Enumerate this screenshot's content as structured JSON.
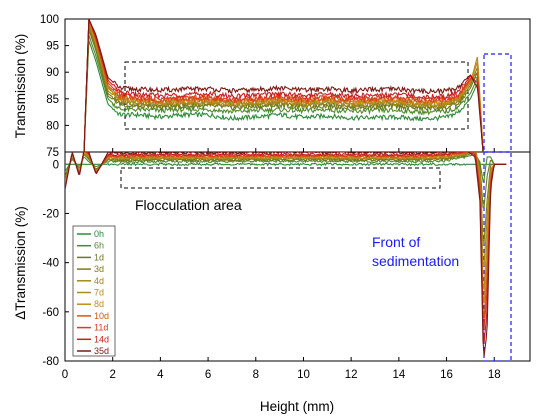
{
  "chart_data": [
    {
      "panel": "top",
      "type": "line",
      "ylabel": "Transmission (%)",
      "ylim": [
        75,
        100
      ],
      "yticks": [
        75,
        80,
        85,
        90,
        95,
        100
      ],
      "xlim": [
        0,
        19.5
      ],
      "x_profile": [
        0.8,
        1.0,
        1.3,
        1.8,
        2.3,
        3,
        4,
        5,
        6,
        7,
        8,
        9,
        10,
        11,
        12,
        13,
        14,
        15,
        16,
        16.5,
        17.0,
        17.3,
        17.55,
        17.7,
        17.9
      ],
      "series": [
        {
          "name": "0h",
          "color": "#2e8b3a",
          "values": [
            75,
            96,
            92,
            84,
            82,
            82,
            81.6,
            82,
            82,
            81.3,
            81.6,
            82,
            81.5,
            81.8,
            81.4,
            81.5,
            81.5,
            81.2,
            81.5,
            82.5,
            85,
            88,
            74,
            74,
            74
          ]
        },
        {
          "name": "6h",
          "color": "#4d8b2a",
          "values": [
            75,
            97,
            93,
            85,
            83,
            83,
            82.8,
            83,
            83,
            82.6,
            82.8,
            83,
            82.7,
            83,
            82.6,
            82.8,
            82.8,
            82.5,
            82.6,
            83.5,
            86,
            89,
            74,
            74,
            74
          ]
        },
        {
          "name": "1d",
          "color": "#6a7a22",
          "values": [
            75,
            98,
            94,
            85.5,
            84,
            83.5,
            83.4,
            83.6,
            83.7,
            83.3,
            83.5,
            83.8,
            83.4,
            83.7,
            83.3,
            83.5,
            83.6,
            83.2,
            83.3,
            84,
            87,
            90,
            74,
            74,
            74
          ]
        },
        {
          "name": "3d",
          "color": "#7f7a18",
          "values": [
            75,
            98.5,
            94.5,
            86,
            84.3,
            84,
            83.8,
            84,
            84.1,
            83.7,
            83.9,
            84.2,
            83.8,
            84.1,
            83.7,
            83.9,
            84,
            83.6,
            83.7,
            84.5,
            87.5,
            91,
            74,
            74,
            74
          ]
        },
        {
          "name": "4d",
          "color": "#a08a14",
          "values": [
            75,
            99,
            95,
            86.5,
            84.6,
            84.2,
            84,
            84.2,
            84.3,
            83.9,
            84.1,
            84.4,
            84,
            84.3,
            83.9,
            84.1,
            84.2,
            83.8,
            83.9,
            84.8,
            88,
            92,
            74,
            74,
            74
          ]
        },
        {
          "name": "7d",
          "color": "#b08a20",
          "values": [
            75,
            99.3,
            95.5,
            87,
            85,
            84.5,
            84.3,
            84.5,
            84.6,
            84.2,
            84.4,
            84.7,
            84.3,
            84.6,
            84.2,
            84.4,
            84.5,
            84.1,
            84.2,
            85,
            88,
            93,
            74,
            74,
            74
          ]
        },
        {
          "name": "8d",
          "color": "#c88a18",
          "values": [
            75,
            99.5,
            95.8,
            87.2,
            85.2,
            84.7,
            84.5,
            84.7,
            84.8,
            84.4,
            84.6,
            84.9,
            84.5,
            84.8,
            84.4,
            84.6,
            84.7,
            84.3,
            84.4,
            85.2,
            88.3,
            92,
            74,
            74,
            74
          ]
        },
        {
          "name": "10d",
          "color": "#d05a14",
          "values": [
            75,
            100,
            96,
            87.5,
            85.4,
            84.9,
            84.7,
            84.9,
            85,
            84.6,
            84.8,
            85.1,
            84.7,
            85,
            84.6,
            84.8,
            84.9,
            84.5,
            84.6,
            85.5,
            88.5,
            90,
            74,
            74,
            74
          ]
        },
        {
          "name": "11d",
          "color": "#e03a20",
          "values": [
            75,
            100,
            96.2,
            88,
            85.8,
            85.2,
            85,
            85.2,
            85.3,
            84.9,
            85.1,
            85.4,
            85,
            85.3,
            84.9,
            85.1,
            85.2,
            84.8,
            84.9,
            85.8,
            88.8,
            89,
            74,
            74,
            74
          ]
        },
        {
          "name": "14d",
          "color": "#c42020",
          "values": [
            75,
            100,
            96.5,
            88.5,
            86.2,
            85.8,
            85.6,
            85.8,
            85.9,
            85.5,
            85.7,
            86,
            85.6,
            85.9,
            85.5,
            85.7,
            85.8,
            85.4,
            85.5,
            86.4,
            89.2,
            88,
            74,
            74,
            74
          ]
        },
        {
          "name": "35d",
          "color": "#7a1a14",
          "values": [
            75,
            100,
            97,
            89,
            87,
            86.8,
            86.6,
            86.8,
            86.9,
            86.5,
            86.7,
            87,
            86.6,
            86.9,
            86.5,
            86.7,
            86.8,
            86.4,
            86.5,
            87.2,
            89.5,
            87,
            74,
            74,
            74
          ]
        }
      ]
    },
    {
      "panel": "bottom",
      "type": "line",
      "xlabel": "Height (mm)",
      "ylabel": "ΔTransmission (%)",
      "xlim": [
        0,
        19.5
      ],
      "xticks": [
        0,
        2,
        4,
        6,
        8,
        10,
        12,
        14,
        16,
        18
      ],
      "ylim": [
        -80,
        5
      ],
      "yticks": [
        -80,
        -60,
        -40,
        -20,
        0
      ],
      "x_profile": [
        0,
        0.3,
        0.6,
        0.8,
        1.0,
        1.3,
        1.8,
        2.5,
        4,
        6,
        8,
        10,
        12,
        14,
        15.2,
        16,
        16.8,
        17.2,
        17.4,
        17.55,
        17.7,
        17.85,
        18.0,
        18.2,
        18.5
      ],
      "series": [
        {
          "name": "0h",
          "color": "#2e8b3a",
          "values": [
            0,
            0,
            0,
            0,
            0,
            0,
            0,
            0,
            0,
            0,
            0,
            0,
            0,
            0,
            0,
            0,
            0,
            0,
            0,
            0,
            0,
            0,
            0,
            0,
            0
          ]
        },
        {
          "name": "6h",
          "color": "#4d8b2a",
          "values": [
            -3,
            2,
            -1,
            3,
            1,
            -1,
            1.2,
            1,
            1.2,
            1.1,
            1.2,
            1.3,
            1.2,
            1.1,
            1.2,
            1.5,
            3,
            4,
            1,
            -8,
            3,
            3,
            0,
            0,
            0
          ]
        },
        {
          "name": "1d",
          "color": "#6a7a22",
          "values": [
            -5,
            3,
            -2,
            4,
            2,
            -2,
            1.8,
            1.5,
            1.8,
            1.7,
            1.8,
            1.9,
            1.8,
            1.7,
            1.8,
            2,
            3.5,
            5,
            0,
            -20,
            -5,
            2,
            0,
            0,
            0
          ]
        },
        {
          "name": "3d",
          "color": "#7f7a18",
          "values": [
            -6,
            3,
            -3,
            4,
            2.5,
            -2.5,
            2.2,
            2,
            2.2,
            2.1,
            2.2,
            2.3,
            2.2,
            2.1,
            2.2,
            2.4,
            4,
            6,
            -2,
            -35,
            -15,
            0,
            0,
            0,
            0
          ]
        },
        {
          "name": "4d",
          "color": "#a08a14",
          "values": [
            -7,
            3.5,
            -3,
            4.5,
            3,
            -3,
            2.5,
            2.3,
            2.5,
            2.4,
            2.5,
            2.6,
            2.5,
            2.4,
            2.5,
            2.7,
            4.2,
            7,
            -3,
            -45,
            -22,
            -2,
            0,
            0,
            0
          ]
        },
        {
          "name": "7d",
          "color": "#b08a20",
          "values": [
            -8,
            4,
            -3.5,
            5,
            3.5,
            -3,
            2.8,
            2.6,
            2.8,
            2.7,
            2.8,
            2.9,
            2.8,
            2.7,
            2.8,
            3,
            4.5,
            7.5,
            -5,
            -55,
            -30,
            -3,
            0,
            0,
            0
          ]
        },
        {
          "name": "8d",
          "color": "#c88a18",
          "values": [
            -8,
            4,
            -3.5,
            5,
            3.5,
            -3,
            3,
            2.8,
            3,
            2.9,
            3,
            3.1,
            3,
            2.9,
            3,
            3.2,
            4.6,
            7,
            -6,
            -60,
            -38,
            -4,
            0,
            0,
            0
          ]
        },
        {
          "name": "10d",
          "color": "#d05a14",
          "values": [
            -9,
            4.5,
            -4,
            5.5,
            4,
            -3.5,
            3.3,
            3.1,
            3.3,
            3.2,
            3.3,
            3.4,
            3.3,
            3.2,
            3.3,
            3.5,
            4.8,
            6,
            -8,
            -66,
            -45,
            -5,
            0,
            0,
            0
          ]
        },
        {
          "name": "11d",
          "color": "#e03a20",
          "values": [
            -9,
            4.5,
            -4,
            5.5,
            4,
            -3.5,
            3.6,
            3.4,
            3.6,
            3.5,
            3.6,
            3.7,
            3.6,
            3.5,
            3.6,
            3.8,
            5,
            5,
            -10,
            -70,
            -52,
            -6,
            0,
            0,
            0
          ]
        },
        {
          "name": "14d",
          "color": "#c42020",
          "values": [
            -10,
            5,
            -4.5,
            6,
            4.5,
            -4,
            4,
            3.8,
            4,
            3.9,
            4,
            4.1,
            4,
            3.9,
            4,
            4.2,
            5.3,
            4,
            -12,
            -75,
            -60,
            -8,
            0,
            0,
            0
          ]
        },
        {
          "name": "35d",
          "color": "#7a1a14",
          "values": [
            -10,
            5,
            -5,
            6,
            5,
            -4,
            4.8,
            4.6,
            4.8,
            4.7,
            4.8,
            4.9,
            4.8,
            4.7,
            4.8,
            5,
            5.8,
            3,
            -15,
            -80,
            -68,
            -10,
            0,
            0,
            0
          ]
        }
      ]
    }
  ],
  "annotations": {
    "flocculation": "Flocculation area",
    "front_line1": "Front of",
    "front_line2": "sedimentation"
  },
  "legend": [
    "0h",
    "6h",
    "1d",
    "3d",
    "4d",
    "7d",
    "8d",
    "10d",
    "11d",
    "14d",
    "35d"
  ]
}
